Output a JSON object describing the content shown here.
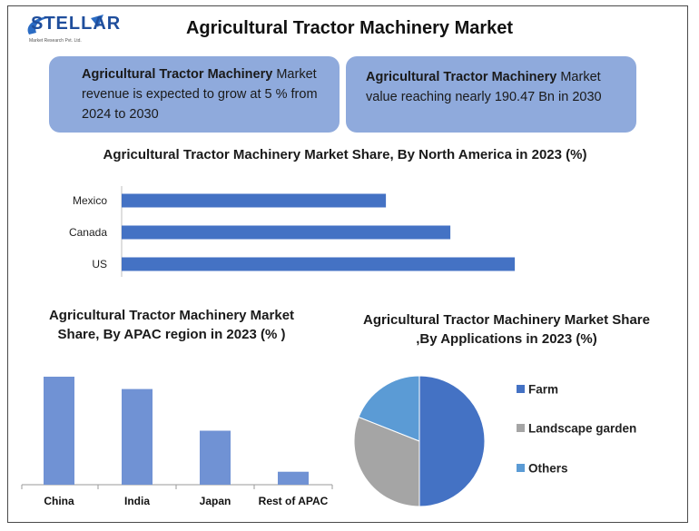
{
  "header": {
    "title": "Agricultural Tractor Machinery Market",
    "logo_text": "STELLAR",
    "logo_subtext": "Market Research Pvt. Ltd."
  },
  "callouts": [
    {
      "bold": "Agricultural Tractor Machinery",
      "rest": " Market revenue is expected to grow at 5 % from 2024 to 2030"
    },
    {
      "bold": "Agricultural Tractor Machinery",
      "rest": " Market value reaching nearly 190.47 Bn in 2030"
    }
  ],
  "colors": {
    "bar_blue": "#4472c4",
    "apac_blue": "#7092d4",
    "callout_bg": "#8faadc",
    "pie_farm": "#4472c4",
    "pie_landscape": "#a5a5a5",
    "pie_others": "#5b9bd5"
  },
  "chart_data": [
    {
      "type": "bar",
      "orientation": "horizontal",
      "title": "Agricultural Tractor Machinery Market Share, By North America in 2023 (%)",
      "categories": [
        "Mexico",
        "Canada",
        "US"
      ],
      "values": [
        20.5,
        25.5,
        30.5
      ],
      "xlim": [
        0,
        33
      ],
      "grid": false,
      "legend": "none"
    },
    {
      "type": "bar",
      "orientation": "vertical",
      "title": "Agricultural Tractor Machinery Market Share, By APAC region  in 2023 (% )",
      "categories": [
        "China",
        "India",
        "Japan",
        "Rest of APAC"
      ],
      "values": [
        35,
        31,
        17.5,
        4.2
      ],
      "ylim": [
        0,
        40
      ],
      "grid": false,
      "legend": "none"
    },
    {
      "type": "pie",
      "title": "Agricultural Tractor Machinery Market Share ,By Applications in 2023 (%)",
      "categories": [
        "Farm",
        "Landscape garden",
        "Others"
      ],
      "values": [
        50,
        31,
        19
      ],
      "legend": "right"
    }
  ]
}
